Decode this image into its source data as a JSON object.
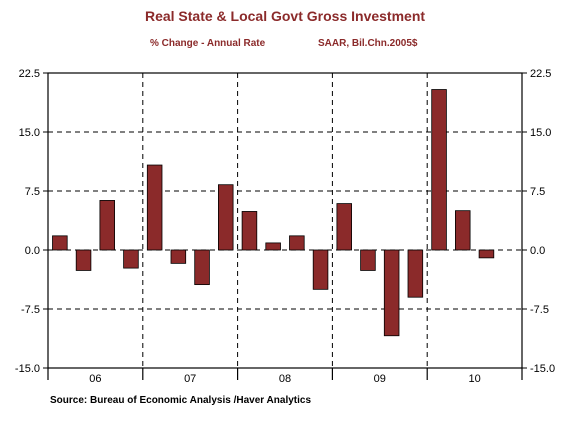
{
  "chart_data": {
    "type": "bar",
    "title": "Real State & Local Govt Gross Investment",
    "subtitle": "% Change - Annual Rate",
    "units": "SAAR, Bil.Chn.2005$",
    "source": "Source:  Bureau of Economic Analysis /Haver Analytics",
    "ylim": [
      -15.0,
      22.5
    ],
    "yticks": [
      "22.5",
      "15.0",
      "7.5",
      "0.0",
      "-7.5",
      "-15.0"
    ],
    "years": [
      "06",
      "07",
      "08",
      "09",
      "10"
    ],
    "quarters_per_year": 4,
    "values": [
      1.8,
      -2.6,
      6.3,
      -2.3,
      10.8,
      -1.7,
      -4.4,
      8.3,
      4.9,
      0.9,
      1.8,
      -5.0,
      5.9,
      -2.6,
      -10.9,
      -6.0,
      20.4,
      5.0,
      -1.0
    ],
    "bar_color": "#8b2a2a",
    "grid": "dashed"
  }
}
